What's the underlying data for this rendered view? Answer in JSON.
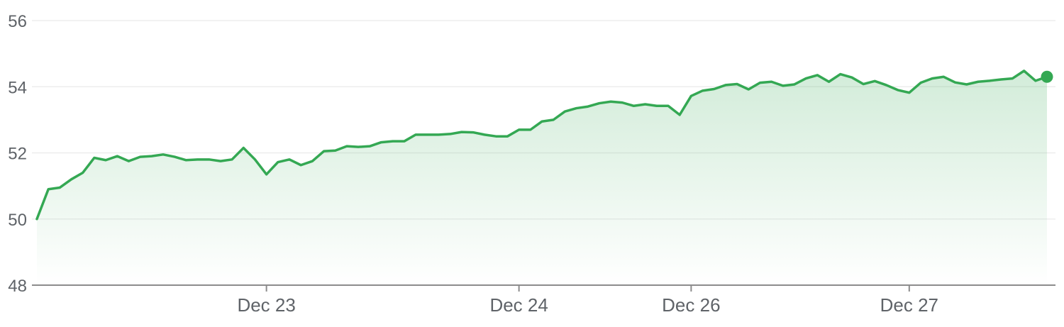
{
  "chart_data": {
    "type": "area",
    "title": "",
    "xlabel": "",
    "ylabel": "",
    "ylim": [
      48,
      56
    ],
    "y_ticks": [
      "56",
      "54",
      "52",
      "50",
      "48"
    ],
    "y_tick_values": [
      56,
      54,
      52,
      50,
      48
    ],
    "x_ticks": [
      {
        "label": "Dec 23",
        "index": 20
      },
      {
        "label": "Dec 24",
        "index": 42
      },
      {
        "label": "Dec 26",
        "index": 57
      },
      {
        "label": "Dec 27",
        "index": 76
      }
    ],
    "grid": true,
    "line_color": "#34a853",
    "fill_color": "#34a853",
    "series": [
      {
        "values": [
          50.0,
          50.9,
          50.95,
          51.2,
          51.4,
          51.85,
          51.78,
          51.9,
          51.75,
          51.88,
          51.9,
          51.95,
          51.88,
          51.78,
          51.8,
          51.8,
          51.75,
          51.8,
          52.15,
          51.8,
          51.35,
          51.72,
          51.8,
          51.63,
          51.75,
          52.05,
          52.07,
          52.2,
          52.18,
          52.2,
          52.32,
          52.35,
          52.35,
          52.55,
          52.55,
          52.55,
          52.57,
          52.63,
          52.62,
          52.55,
          52.5,
          52.5,
          52.7,
          52.7,
          52.95,
          53.0,
          53.25,
          53.35,
          53.4,
          53.5,
          53.55,
          53.52,
          53.42,
          53.47,
          53.42,
          53.42,
          53.15,
          53.72,
          53.88,
          53.93,
          54.05,
          54.08,
          53.92,
          54.12,
          54.15,
          54.03,
          54.07,
          54.25,
          54.35,
          54.15,
          54.38,
          54.28,
          54.08,
          54.17,
          54.05,
          53.9,
          53.82,
          54.12,
          54.25,
          54.3,
          54.13,
          54.07,
          54.15,
          54.18,
          54.22,
          54.25,
          54.48,
          54.18,
          54.3
        ]
      }
    ]
  }
}
